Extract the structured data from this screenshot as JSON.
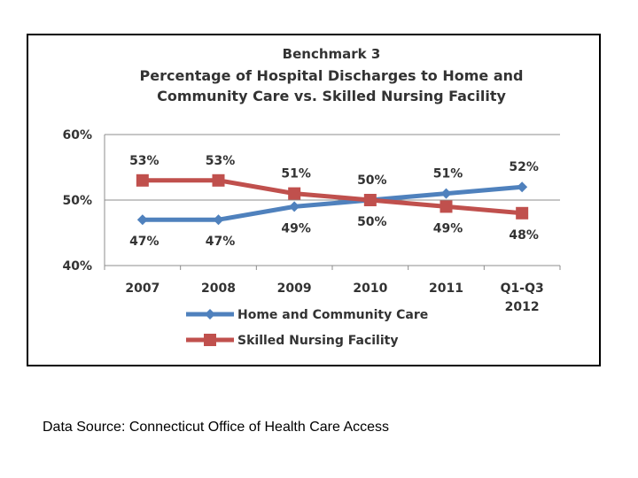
{
  "chart_data": {
    "type": "line",
    "title_lines": [
      "Benchmark 3",
      "Percentage of Hospital Discharges to Home and",
      "Community Care vs. Skilled Nursing Facility"
    ],
    "categories": [
      "2007",
      "2008",
      "2009",
      "2010",
      "2011",
      "Q1-Q3 2012"
    ],
    "category_lines": [
      [
        "2007"
      ],
      [
        "2008"
      ],
      [
        "2009"
      ],
      [
        "2010"
      ],
      [
        "2011"
      ],
      [
        "Q1-Q3",
        "2012"
      ]
    ],
    "ylim": [
      40,
      60
    ],
    "yticks": [
      40,
      50,
      60
    ],
    "ytick_labels": [
      "40%",
      "50%",
      "60%"
    ],
    "grid": true,
    "legend_position": "bottom",
    "series": [
      {
        "name": "Home and Community Care",
        "values": [
          47,
          47,
          49,
          50,
          51,
          52
        ],
        "labels": [
          "47%",
          "47%",
          "49%",
          "50%",
          "51%",
          "52%"
        ],
        "label_side": [
          "below",
          "below",
          "below",
          "below",
          "above",
          "above"
        ],
        "color": "#4F81BD",
        "marker": "diamond"
      },
      {
        "name": "Skilled Nursing Facility",
        "values": [
          53,
          53,
          51,
          50,
          49,
          48
        ],
        "labels": [
          "53%",
          "53%",
          "51%",
          "50%",
          "49%",
          "48%"
        ],
        "label_side": [
          "above",
          "above",
          "above",
          "above",
          "below",
          "below"
        ],
        "color": "#C0504D",
        "marker": "square"
      }
    ]
  },
  "footer": {
    "source": "Data Source: Connecticut Office of Health Care Access"
  }
}
